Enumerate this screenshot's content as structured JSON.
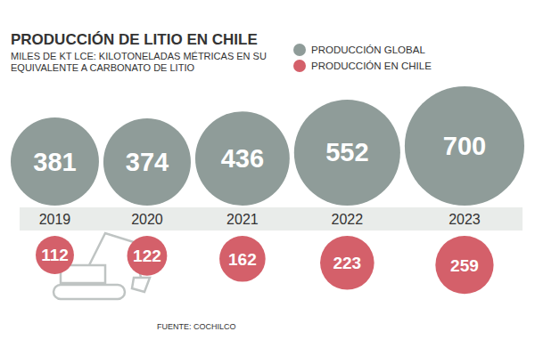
{
  "chart_data": {
    "type": "bubble",
    "title": "PRODUCCIÓN DE LITIO EN CHILE",
    "subtitle": "MILES DE KT LCE: KILOTONELADAS MÉTRICAS EN SU EQUIVALENTE A CARBONATO DE LITIO",
    "annotations": [
      "FUENTE: COCHILCO"
    ],
    "categories": [
      "2019",
      "2020",
      "2021",
      "2022",
      "2023"
    ],
    "series": [
      {
        "name": "PRODUCCIÓN GLOBAL",
        "color": "#8f9c99",
        "values": [
          381,
          374,
          436,
          552,
          700
        ]
      },
      {
        "name": "PRODUCCIÓN EN CHILE",
        "color": "#d4606a",
        "values": [
          112,
          122,
          162,
          223,
          259
        ]
      }
    ],
    "data_labels": true,
    "tick_labels": false,
    "legend": "top-right"
  }
}
